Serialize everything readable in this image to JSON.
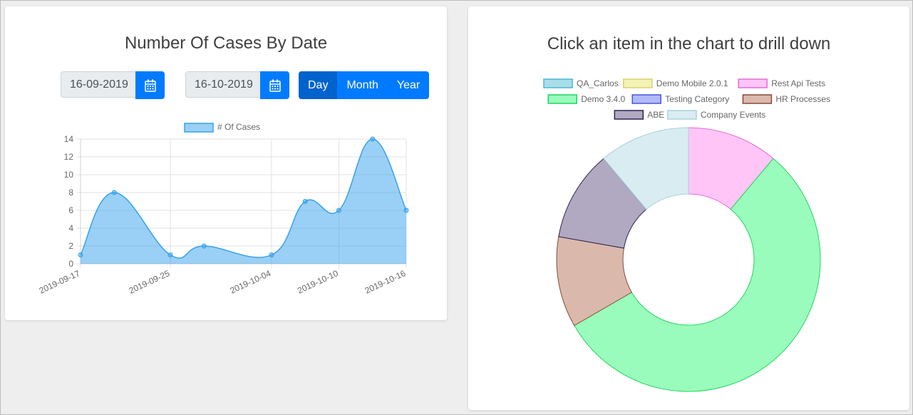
{
  "left_card": {
    "title": "Number Of Cases By Date",
    "from_date": "16-09-2019",
    "to_date": "16-10-2019",
    "calendar_icon": "calendar-icon",
    "granularity": {
      "options": [
        "Day",
        "Month",
        "Year"
      ],
      "selected": "Day"
    }
  },
  "right_card": {
    "title": "Click an item in the chart to drill down"
  },
  "colors": {
    "primary": "#007bff",
    "primary_active": "#0062cc"
  },
  "chart_data": [
    {
      "type": "area",
      "title": "",
      "xlabel": "",
      "ylabel": "",
      "x": [
        "2019-09-17",
        "2019-09-20",
        "2019-09-25",
        "2019-09-28",
        "2019-10-04",
        "2019-10-07",
        "2019-10-10",
        "2019-10-13",
        "2019-10-16"
      ],
      "xticks": [
        "2019-09-17",
        "2019-09-25",
        "2019-10-04",
        "2019-10-10",
        "2019-10-16"
      ],
      "series": [
        {
          "name": "# Of Cases",
          "values": [
            1,
            8,
            1,
            2,
            1,
            7,
            6,
            14,
            6
          ],
          "color": "#36a2eb"
        }
      ],
      "ylim": [
        0,
        14
      ],
      "yticks": [
        0,
        2,
        4,
        6,
        8,
        10,
        12,
        14
      ],
      "grid": true,
      "legend": "top"
    },
    {
      "type": "pie",
      "title": "",
      "legend": "top",
      "categories": [
        "QA_Carlos",
        "Demo Mobile 2.0.1",
        "Rest Api Tests",
        "Demo 3.4.0",
        "Testing Category",
        "HR Processes",
        "ABE",
        "Company Events"
      ],
      "values": [
        0,
        0,
        1,
        5,
        0,
        1,
        1,
        1
      ],
      "colors": [
        "#a8dde9",
        "#f4f2b6",
        "#ffc5f6",
        "#99fcbc",
        "#b1baf8",
        "#dbb8ac",
        "#b0a9c1",
        "#d9ecf1"
      ],
      "borders": [
        "#4ab8d1",
        "#d8d46c",
        "#e86cd8",
        "#22d65c",
        "#4756d8",
        "#8a4a38",
        "#2e2450",
        "#a6d2de"
      ]
    }
  ]
}
